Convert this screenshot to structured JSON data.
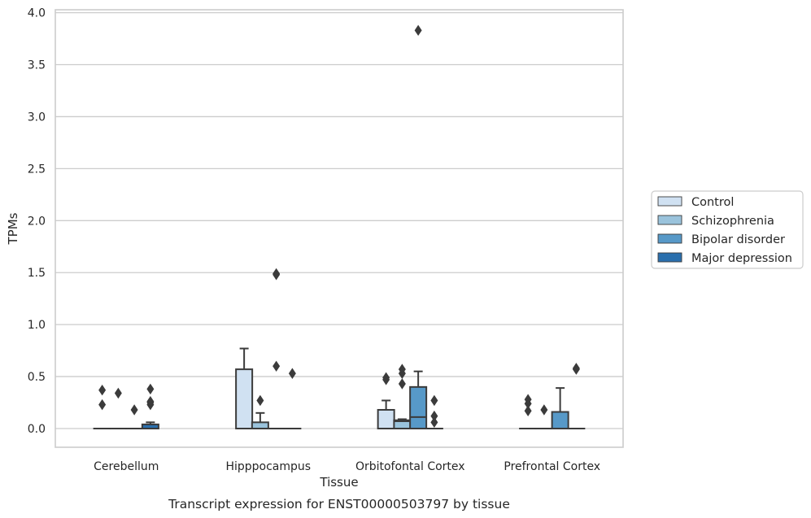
{
  "caption": "Transcript expression for ENST00000503797 by tissue",
  "chart_data": {
    "type": "box",
    "xlabel": "Tissue",
    "ylabel": "TPMs",
    "ylim": [
      -0.18,
      4.03
    ],
    "yticks": [
      "0.0",
      "0.5",
      "1.0",
      "1.5",
      "2.0",
      "2.5",
      "3.0",
      "3.5",
      "4.0"
    ],
    "grid": true,
    "legend_position": "right",
    "categories": [
      "Cerebellum",
      "Hipppocampus",
      "Orbitofontal Cortex",
      "Prefrontal Cortex"
    ],
    "series": [
      {
        "name": "Control",
        "color": "#d0e1f2",
        "boxes": [
          {
            "q1": 0,
            "median": 0,
            "q3": 0,
            "whisker_low": 0,
            "whisker_high": 0,
            "outliers": [
              0.23,
              0.37
            ]
          },
          {
            "q1": 0,
            "median": 0,
            "q3": 0.57,
            "whisker_low": 0,
            "whisker_high": 0.77,
            "outliers": []
          },
          {
            "q1": 0,
            "median": 0,
            "q3": 0.18,
            "whisker_low": 0,
            "whisker_high": 0.27,
            "outliers": [
              0.47,
              0.49
            ]
          },
          {
            "q1": 0,
            "median": 0,
            "q3": 0,
            "whisker_low": 0,
            "whisker_high": 0,
            "outliers": [
              0.17,
              0.24,
              0.28
            ]
          }
        ]
      },
      {
        "name": "Schizophrenia",
        "color": "#9ac3dc",
        "boxes": [
          {
            "q1": 0,
            "median": 0,
            "q3": 0,
            "whisker_low": 0,
            "whisker_high": 0,
            "outliers": [
              0.34
            ]
          },
          {
            "q1": 0,
            "median": 0,
            "q3": 0.06,
            "whisker_low": 0,
            "whisker_high": 0.15,
            "outliers": [
              0.27
            ]
          },
          {
            "q1": 0,
            "median": 0.07,
            "q3": 0.08,
            "whisker_low": 0,
            "whisker_high": 0.09,
            "outliers": [
              0.43,
              0.53,
              0.57
            ]
          },
          {
            "q1": 0,
            "median": 0,
            "q3": 0,
            "whisker_low": 0,
            "whisker_high": 0,
            "outliers": [
              0.18
            ]
          }
        ]
      },
      {
        "name": "Bipolar disorder",
        "color": "#5799c8",
        "boxes": [
          {
            "q1": 0,
            "median": 0,
            "q3": 0,
            "whisker_low": 0,
            "whisker_high": 0,
            "outliers": [
              0.18
            ]
          },
          {
            "q1": 0,
            "median": 0,
            "q3": 0,
            "whisker_low": 0,
            "whisker_high": 0,
            "outliers": [
              0.6,
              1.48,
              1.49
            ]
          },
          {
            "q1": 0,
            "median": 0.11,
            "q3": 0.4,
            "whisker_low": 0,
            "whisker_high": 0.55,
            "outliers": [
              3.83
            ]
          },
          {
            "q1": 0,
            "median": 0,
            "q3": 0.16,
            "whisker_low": 0,
            "whisker_high": 0.39,
            "outliers": []
          }
        ]
      },
      {
        "name": "Major depression",
        "color": "#2a6fad",
        "boxes": [
          {
            "q1": 0,
            "median": 0,
            "q3": 0.04,
            "whisker_low": 0,
            "whisker_high": 0.06,
            "outliers": [
              0.23,
              0.25,
              0.26,
              0.38
            ]
          },
          {
            "q1": 0,
            "median": 0,
            "q3": 0,
            "whisker_low": 0,
            "whisker_high": 0,
            "outliers": [
              0.53
            ]
          },
          {
            "q1": 0,
            "median": 0,
            "q3": 0,
            "whisker_low": 0,
            "whisker_high": 0,
            "outliers": [
              0.06,
              0.12,
              0.27
            ]
          },
          {
            "q1": 0,
            "median": 0,
            "q3": 0,
            "whisker_low": 0,
            "whisker_high": 0,
            "outliers": [
              0.57,
              0.58
            ]
          }
        ]
      }
    ]
  }
}
